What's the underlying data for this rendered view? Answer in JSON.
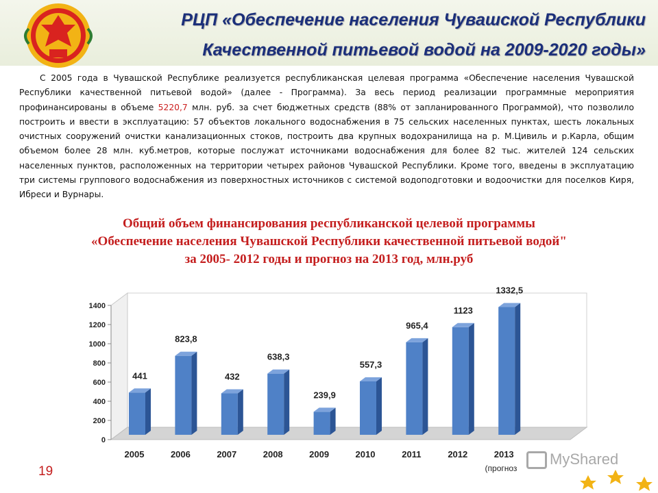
{
  "header": {
    "title_line1": "РЦП «Обеспечение населения Чувашской Республики",
    "title_line2": "Качественной питьевой водой на 2009-2020 годы»"
  },
  "intro": {
    "part1": "С 2005 года в Чувашской Республике реализуется республиканская целевая программа «Обеспечение населения Чувашской Республики качественной питьевой водой» (далее - Программа). За весь период реализации программные мероприятия профинансированы в объеме ",
    "highlight": "5220,7",
    "part2": " млн. руб. за счет бюджетных средств (88% от запланированного Программой), что позволило построить и ввести в эксплуатацию: 57 объектов локального водоснабжения в 75 сельских населенных пунктах, шесть локальных очистных сооружений очистки канализационных стоков, построить два крупных водохранилища на р. М.Цивиль и р.Карла, общим объемом более 28 млн. куб.метров, которые послужат источниками водоснабжения для более 82 тыс. жителей 124 сельских населенных пунктов, расположенных на территории четырех районов Чувашской Республики. Кроме того, введены в эксплуатацию три системы группового водоснабжения из поверхностных источников с системой водоподготовки и водоочистки для поселков Киря, Ибреси и Вурнары."
  },
  "chart_title": {
    "line1": "Общий объем финансирования республиканской целевой программы",
    "line2": "«Обеспечение населения Чувашской Республики качественной питьевой водой\"",
    "line3": "за 2005- 2012 годы и прогноз на 2013 год, млн.руб"
  },
  "chart_data": {
    "type": "bar",
    "categories": [
      "2005",
      "2006",
      "2007",
      "2008",
      "2009",
      "2010",
      "2011",
      "2012",
      "2013"
    ],
    "values": [
      441,
      823.8,
      432,
      638.3,
      239.9,
      557.3,
      965.4,
      1123,
      1332.5
    ],
    "value_labels": [
      "441",
      "823,8",
      "432",
      "638,3",
      "239,9",
      "557,3",
      "965,4",
      "1123",
      "1332,5"
    ],
    "yticks": [
      "0",
      "200",
      "400",
      "600",
      "800",
      "1000",
      "1200",
      "1400"
    ],
    "ylim": [
      0,
      1400
    ],
    "category_note": "(прогноз",
    "bar_color": "#4f81c7",
    "grid": false,
    "legend": false
  },
  "footer": {
    "page_number": "19",
    "brand": "MyShared"
  }
}
